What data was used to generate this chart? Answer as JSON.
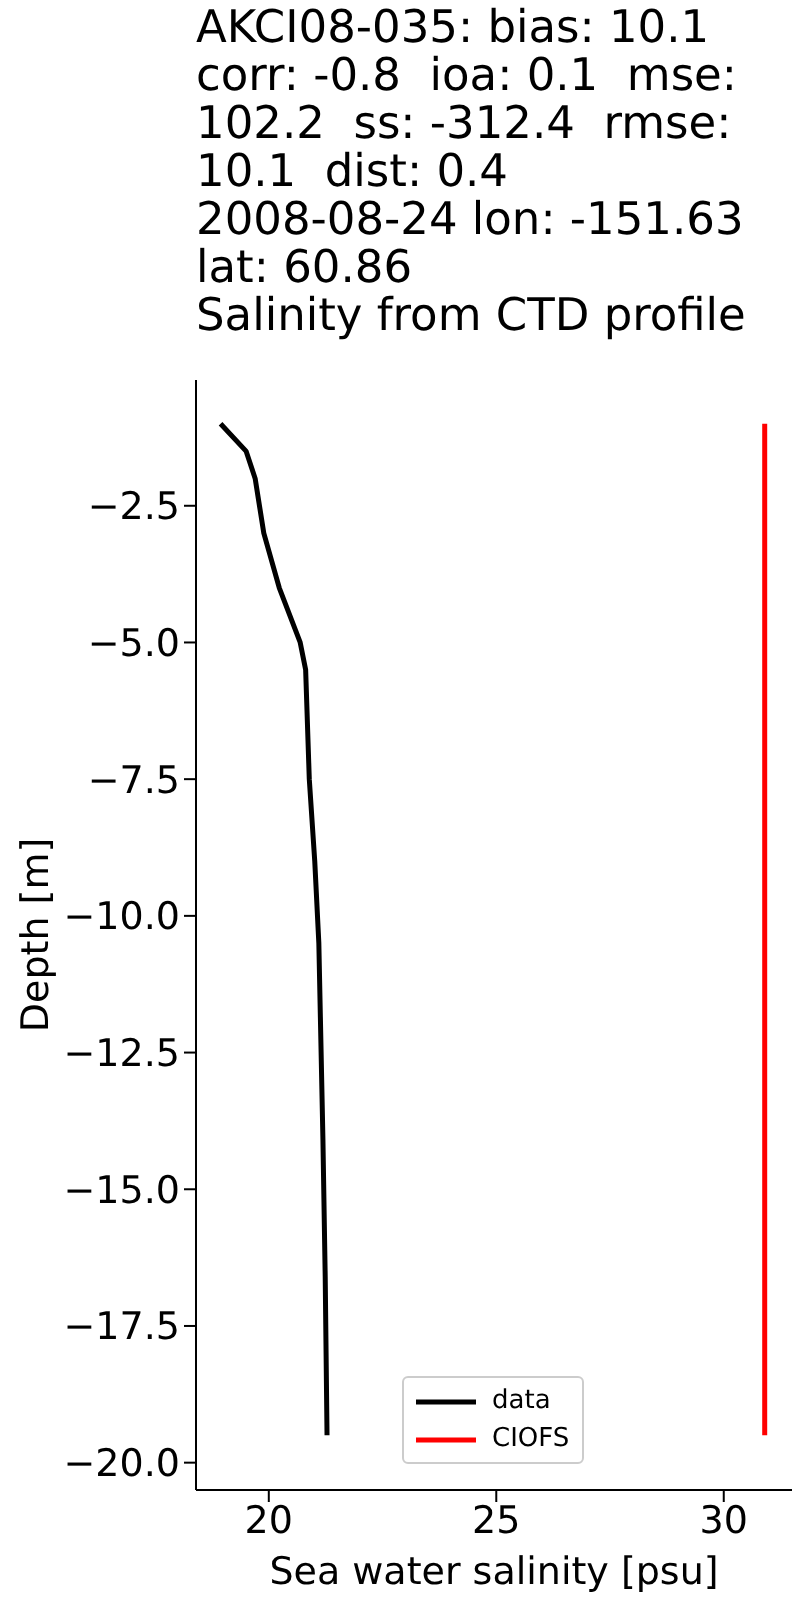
{
  "chart_data": {
    "type": "line",
    "title": "AKCI08-035: bias: 10.1  corr: -0.8  ioa: 0.1  mse: 102.2  ss: -312.4  rmse: 10.1  dist: 0.4\n2008-08-24 lon: -151.63 lat: 60.86\nSalinity from CTD profile",
    "xlabel": "Sea water salinity [psu]",
    "ylabel": "Depth [m]",
    "series": [
      {
        "name": "data",
        "color": "#000000",
        "x": [
          18.94,
          19.5,
          19.7,
          19.89,
          20.23,
          20.69,
          20.81,
          20.89,
          21.01,
          21.1,
          21.19,
          21.24,
          21.28
        ],
        "values": [
          -1.0,
          -1.5,
          -2.0,
          -3.0,
          -4.0,
          -5.0,
          -5.5,
          -7.5,
          -9.0,
          -10.5,
          -14.1,
          -16.6,
          -19.5
        ]
      },
      {
        "name": "CIOFS",
        "color": "#ff0000",
        "x": [
          30.9,
          30.9
        ],
        "values": [
          -1.0,
          -19.5
        ]
      }
    ],
    "xlim": [
      18.4,
      31.5
    ],
    "xticks": [
      20,
      25,
      30
    ],
    "ylim": [
      -20.5,
      -0.2
    ],
    "yticks": [
      -2.5,
      {
        "value": -5,
        "label": "−5.0"
      },
      -7.5,
      {
        "value": -10,
        "label": "−10.0"
      },
      -12.5,
      {
        "value": -15,
        "label": "−15.0"
      },
      -17.5,
      {
        "value": -20,
        "label": "−20.0"
      }
    ],
    "grid": false,
    "legend": "bottom",
    "marker": "none",
    "line_style": "solid"
  }
}
